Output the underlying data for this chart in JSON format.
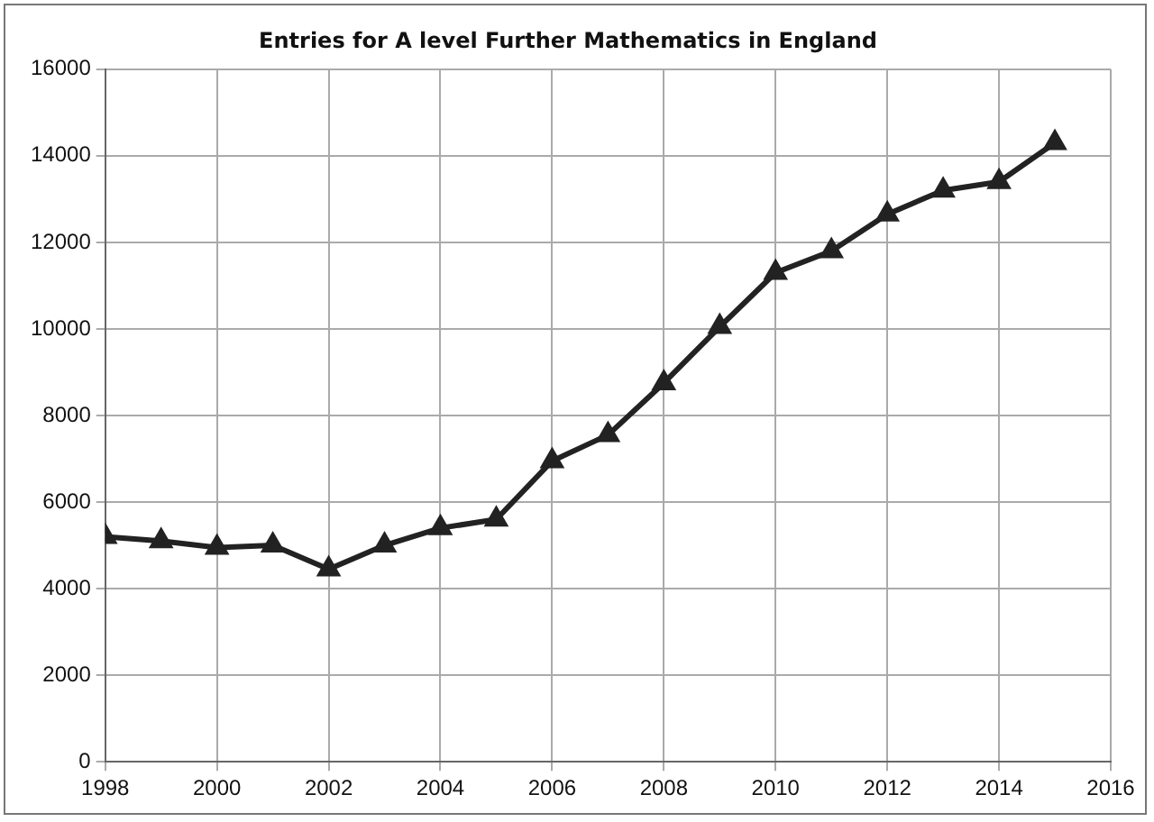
{
  "chart_data": {
    "type": "line",
    "title": "Entries for A level Further Mathematics in England",
    "x": [
      1998,
      1999,
      2000,
      2001,
      2002,
      2003,
      2004,
      2005,
      2006,
      2007,
      2008,
      2009,
      2010,
      2011,
      2012,
      2013,
      2014,
      2015
    ],
    "series": [
      {
        "color": "#222222",
        "values": [
          5200,
          5100,
          4950,
          5000,
          4450,
          5000,
          5400,
          5600,
          6950,
          7550,
          8750,
          10050,
          11300,
          11800,
          12650,
          13200,
          13400,
          14300
        ]
      }
    ],
    "xlim": [
      1998,
      2016
    ],
    "xticks": [
      1998,
      2000,
      2002,
      2004,
      2006,
      2008,
      2010,
      2012,
      2014,
      2016
    ],
    "ylim": [
      0,
      16000
    ],
    "yticks": [
      0,
      2000,
      4000,
      6000,
      8000,
      10000,
      12000,
      14000,
      16000
    ],
    "grid": true,
    "legend": false,
    "marker": "triangle",
    "line_style": "solid"
  }
}
